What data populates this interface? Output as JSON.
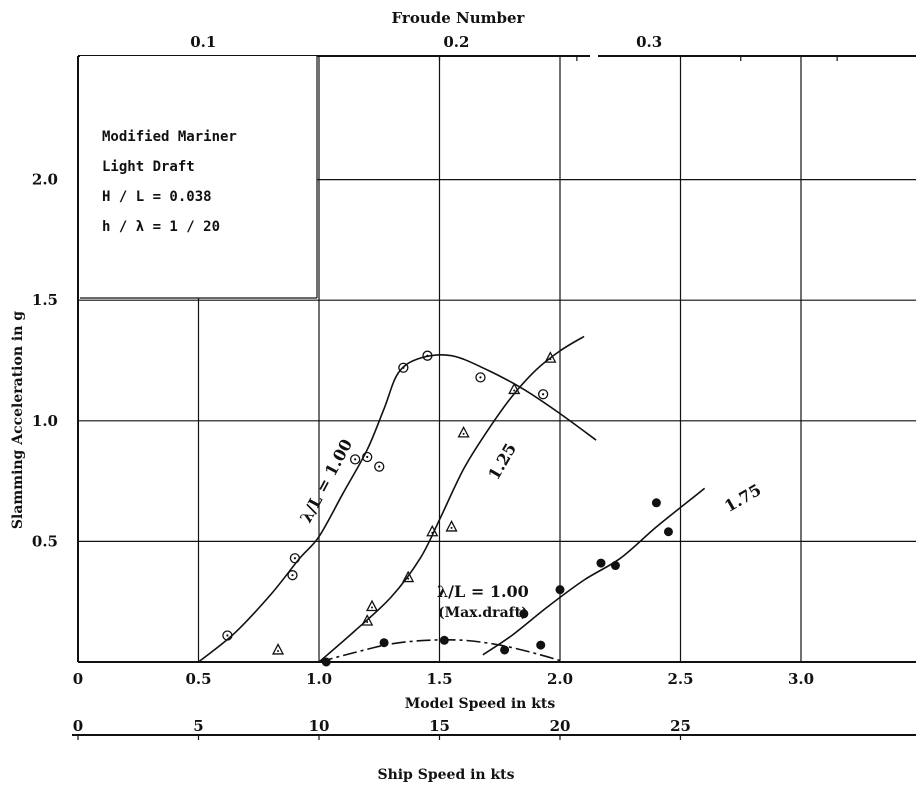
{
  "chart_data": {
    "type": "scatter",
    "title": "",
    "top_axis": {
      "label": "Froude Number",
      "ticks": [
        0.1,
        0.2,
        0.3
      ],
      "tick_labels": [
        "0.1",
        "0.2",
        "0.3"
      ],
      "tick_positions_model_speed": [
        0.52,
        1.57,
        2.37
      ]
    },
    "xlabel": "Model Speed  in kts",
    "x_ticks": [
      0,
      0.5,
      1.0,
      1.5,
      2.0,
      2.5,
      3.0
    ],
    "x_tick_labels": [
      "0",
      "0.5",
      "1.0",
      "1.5",
      "2.0",
      "2.5",
      "3.0"
    ],
    "xlim": [
      0,
      3.5
    ],
    "secondary_x_axis": {
      "label": "Ship Speed  in kts",
      "ticks": [
        0,
        5,
        10,
        15,
        20,
        25
      ],
      "tick_labels": [
        "0",
        "5",
        "10",
        "15",
        "20",
        "25"
      ],
      "model_per_ship": 0.1
    },
    "ylabel": "Slamming Acceleration  in g",
    "y_ticks": [
      0.5,
      1.0,
      1.5,
      2.0
    ],
    "y_tick_labels": [
      "0.5",
      "1.0",
      "1.5",
      "2.0"
    ],
    "ylim": [
      0,
      2.5
    ],
    "grid": true,
    "info_box": [
      "Modified Mariner",
      "Light Draft",
      "H / L = 0.038",
      "h / λ = 1 / 20"
    ],
    "series": [
      {
        "name": "λ/L = 1.00",
        "marker": "circle",
        "points": [
          [
            0.62,
            0.11
          ],
          [
            0.89,
            0.36
          ],
          [
            0.9,
            0.43
          ],
          [
            1.15,
            0.84
          ],
          [
            1.2,
            0.85
          ],
          [
            1.25,
            0.81
          ],
          [
            1.35,
            1.22
          ],
          [
            1.45,
            1.27
          ],
          [
            1.67,
            1.18
          ],
          [
            1.93,
            1.11
          ]
        ],
        "curve": [
          [
            0.5,
            0.0
          ],
          [
            0.65,
            0.12
          ],
          [
            0.8,
            0.28
          ],
          [
            0.92,
            0.43
          ],
          [
            1.0,
            0.52
          ],
          [
            1.1,
            0.7
          ],
          [
            1.2,
            0.88
          ],
          [
            1.27,
            1.05
          ],
          [
            1.33,
            1.2
          ],
          [
            1.42,
            1.26
          ],
          [
            1.55,
            1.27
          ],
          [
            1.7,
            1.21
          ],
          [
            1.85,
            1.13
          ],
          [
            2.0,
            1.03
          ],
          [
            2.15,
            0.92
          ]
        ]
      },
      {
        "name": "1.25",
        "marker": "triangle",
        "points": [
          [
            0.83,
            0.05
          ],
          [
            1.2,
            0.17
          ],
          [
            1.22,
            0.23
          ],
          [
            1.37,
            0.35
          ],
          [
            1.47,
            0.54
          ],
          [
            1.55,
            0.56
          ],
          [
            1.6,
            0.95
          ],
          [
            1.81,
            1.13
          ],
          [
            1.96,
            1.26
          ]
        ],
        "curve": [
          [
            1.0,
            0.0
          ],
          [
            1.15,
            0.13
          ],
          [
            1.3,
            0.27
          ],
          [
            1.42,
            0.43
          ],
          [
            1.5,
            0.59
          ],
          [
            1.6,
            0.8
          ],
          [
            1.7,
            0.96
          ],
          [
            1.8,
            1.1
          ],
          [
            1.9,
            1.21
          ],
          [
            2.0,
            1.29
          ],
          [
            2.1,
            1.35
          ]
        ]
      },
      {
        "name": "1.75",
        "marker": "dot",
        "points": [
          [
            1.77,
            0.05
          ],
          [
            1.85,
            0.2
          ],
          [
            1.92,
            0.07
          ],
          [
            2.0,
            0.3
          ],
          [
            2.17,
            0.41
          ],
          [
            2.23,
            0.4
          ],
          [
            2.4,
            0.66
          ],
          [
            2.45,
            0.54
          ]
        ],
        "curve": [
          [
            1.68,
            0.03
          ],
          [
            1.8,
            0.11
          ],
          [
            1.95,
            0.23
          ],
          [
            2.1,
            0.34
          ],
          [
            2.25,
            0.43
          ],
          [
            2.4,
            0.56
          ],
          [
            2.55,
            0.68
          ],
          [
            2.6,
            0.72
          ]
        ]
      },
      {
        "name": "λ/L = 1.00 (Max.draft)",
        "marker": "dot",
        "points": [
          [
            1.03,
            0.0
          ],
          [
            1.27,
            0.08
          ],
          [
            1.52,
            0.09
          ]
        ],
        "curve": [
          [
            1.0,
            0.0
          ],
          [
            1.15,
            0.04
          ],
          [
            1.3,
            0.075
          ],
          [
            1.45,
            0.09
          ],
          [
            1.6,
            0.09
          ],
          [
            1.75,
            0.07
          ],
          [
            1.9,
            0.035
          ],
          [
            2.02,
            0.0
          ]
        ],
        "dashed": true
      }
    ],
    "curve_labels": [
      {
        "series": "λ/L = 1.00",
        "lines": [
          "λ/L = 1.00"
        ],
        "at": [
          1.05,
          0.74
        ],
        "rotation": -62
      },
      {
        "series": "1.25",
        "lines": [
          "1.25"
        ],
        "at": [
          1.78,
          0.82
        ],
        "rotation": -60
      },
      {
        "series": "1.75",
        "lines": [
          "1.75"
        ],
        "at": [
          2.77,
          0.66
        ],
        "rotation": -30
      },
      {
        "series": "λ/L = 1.00 (Max.draft)",
        "lines": [
          "λ/L = 1.00",
          "(Max.draft)"
        ],
        "at": [
          1.68,
          0.27
        ],
        "rotation": 0
      }
    ]
  }
}
